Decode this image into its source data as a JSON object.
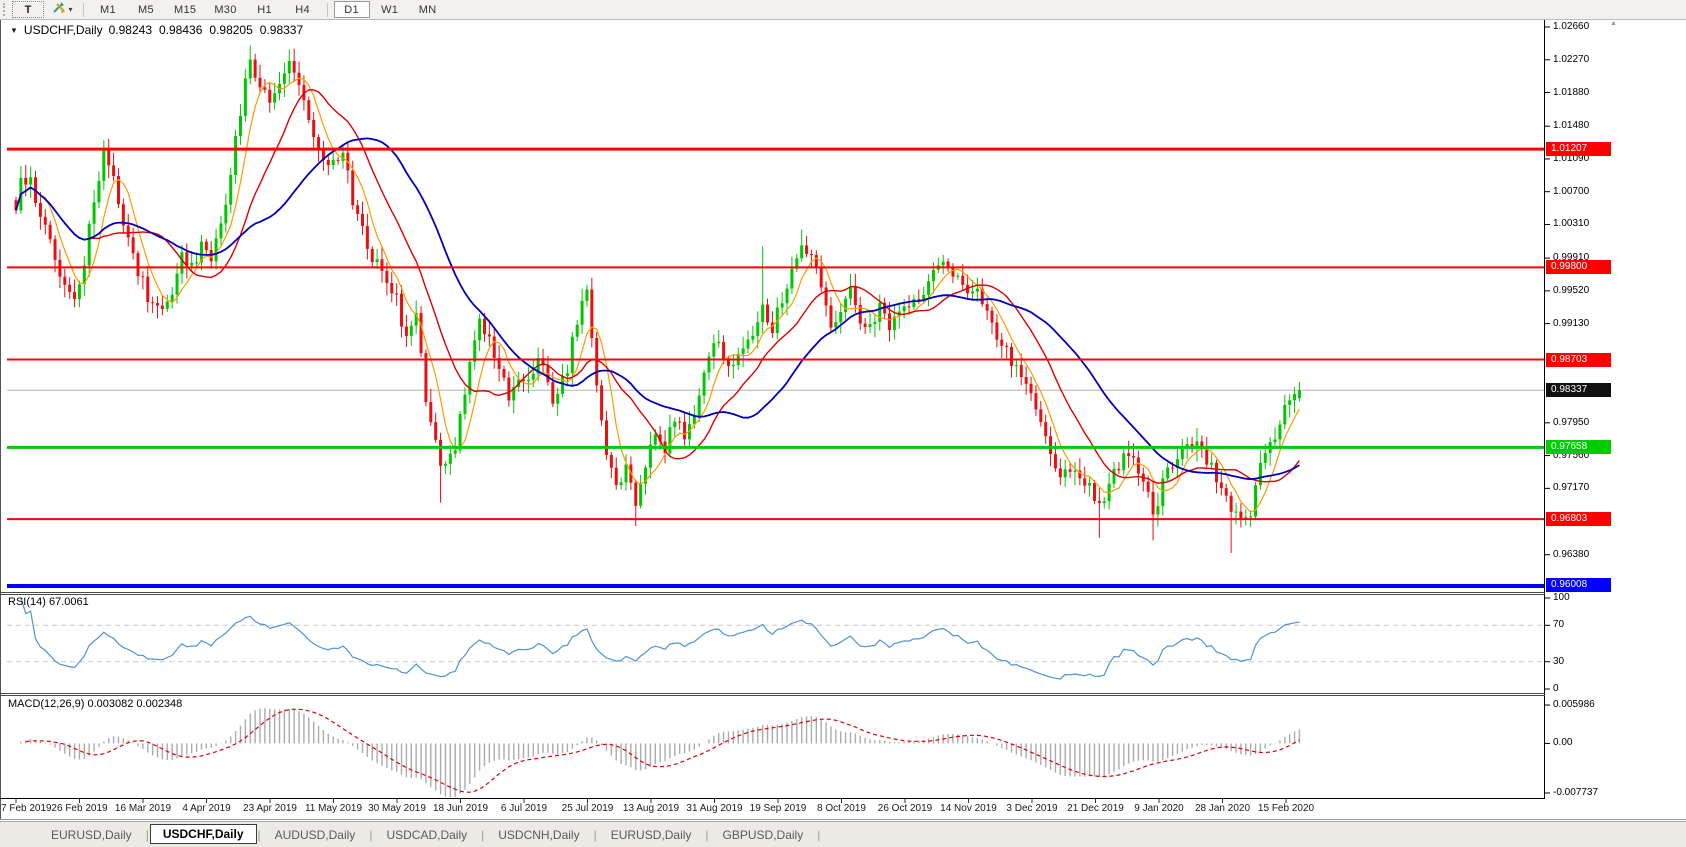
{
  "toolbar": {
    "text_tool_label": "T",
    "timeframes": [
      "M1",
      "M5",
      "M15",
      "M30",
      "H1",
      "H4",
      "D1",
      "W1",
      "MN"
    ],
    "active_timeframe": "D1"
  },
  "icons": {
    "dropdown_caret": "▾",
    "collapse_triangle": "▼",
    "tab_separator": "|",
    "axis_scroll_up": "▲"
  },
  "chart": {
    "symbol_label": "USDCHF,Daily",
    "open": "0.98243",
    "high": "0.98436",
    "low": "0.98205",
    "close": "0.98337"
  },
  "price_axis": {
    "ticks": [
      "1.02660",
      "1.02270",
      "1.01880",
      "1.01480",
      "1.01090",
      "1.00700",
      "1.00310",
      "0.99910",
      "0.99520",
      "0.99130",
      "0.97950",
      "0.97560",
      "0.97170",
      "0.96380"
    ]
  },
  "rsi": {
    "label": "RSI(14) 67.0061",
    "axis_ticks": [
      "100",
      "70",
      "30",
      "0"
    ]
  },
  "macd": {
    "label": "MACD(12,26,9) 0.003082 0.002348",
    "axis_ticks": [
      "0.005986",
      "0.00",
      "-0.007737"
    ]
  },
  "date_axis": {
    "labels": [
      "7 Feb 2019",
      "26 Feb 2019",
      "16 Mar 2019",
      "4 Apr 2019",
      "23 Apr 2019",
      "11 May 2019",
      "30 May 2019",
      "18 Jun 2019",
      "6 Jul 2019",
      "25 Jul 2019",
      "13 Aug 2019",
      "31 Aug 2019",
      "19 Sep 2019",
      "8 Oct 2019",
      "26 Oct 2019",
      "14 Nov 2019",
      "3 Dec 2019",
      "21 Dec 2019",
      "9 Jan 2020",
      "28 Jan 2020",
      "15 Feb 2020"
    ]
  },
  "tabs": {
    "items": [
      "EURUSD,Daily",
      "USDCHF,Daily",
      "AUDUSD,Daily",
      "USDCAD,Daily",
      "USDCNH,Daily",
      "EURUSD,Daily",
      "GBPUSD,Daily"
    ],
    "active_index": 1
  },
  "chart_data": {
    "type": "candlestick",
    "symbol": "USDCHF",
    "timeframe": "Daily",
    "bars": 264,
    "colors": {
      "bull": "#00C800",
      "bear": "#E81010",
      "ma_fast": "#FF9900",
      "ma_mid": "#DD0000",
      "ma_slow": "#0000BB",
      "rsi_line": "#4D94D6",
      "macd_bar": "#ABABAB",
      "macd_signal": "#E00000",
      "price_line_gray": "#B4B4B4"
    },
    "levels": [
      {
        "value": 1.01207,
        "label": "1.01207",
        "color": "#FF0000",
        "line_width": 3
      },
      {
        "value": 0.998,
        "label": "0.99800",
        "color": "#FF0000",
        "line_width": 2
      },
      {
        "value": 0.98703,
        "label": "0.98703",
        "color": "#FF0000",
        "line_width": 2
      },
      {
        "value": 0.98337,
        "label": "0.98337",
        "color": "#111111",
        "line_color": "#B4B4B4",
        "line_width": 1,
        "is_price_line": true
      },
      {
        "value": 0.97658,
        "label": "0.97658",
        "color": "#00CC00",
        "line_width": 3
      },
      {
        "value": 0.96803,
        "label": "0.96803",
        "color": "#FF0000",
        "line_width": 2
      },
      {
        "value": 0.96008,
        "label": "0.96008",
        "color": "#0000FF",
        "line_width": 4
      }
    ],
    "price_axis_ticks": [
      1.0266,
      1.0227,
      1.0188,
      1.0148,
      1.0109,
      1.007,
      1.0031,
      0.9991,
      0.9952,
      0.9913,
      0.9795,
      0.9756,
      0.9717,
      0.9638
    ],
    "close_path": [
      [
        0,
        1.004
      ],
      [
        1,
        1.0078
      ],
      [
        3,
        1.0092
      ],
      [
        5,
        1.0037
      ],
      [
        8,
        0.9995
      ],
      [
        10,
        0.9953
      ],
      [
        12,
        0.9941
      ],
      [
        14,
        0.9989
      ],
      [
        16,
        1.0061
      ],
      [
        18,
        1.0122
      ],
      [
        20,
        1.009
      ],
      [
        21,
        1.0061
      ],
      [
        23,
        1.0013
      ],
      [
        25,
        0.9977
      ],
      [
        27,
        0.9947
      ],
      [
        30,
        0.9929
      ],
      [
        32,
        0.9953
      ],
      [
        34,
        0.9995
      ],
      [
        36,
        0.9977
      ],
      [
        38,
        1.0007
      ],
      [
        40,
        0.9989
      ],
      [
        42,
        1.0025
      ],
      [
        43,
        1.005
      ],
      [
        45,
        1.013
      ],
      [
        47,
        1.02
      ],
      [
        48,
        1.0225
      ],
      [
        50,
        1.0195
      ],
      [
        52,
        1.017
      ],
      [
        54,
        1.02
      ],
      [
        56,
        1.0225
      ],
      [
        58,
        1.0195
      ],
      [
        60,
        1.015
      ],
      [
        62,
        1.012
      ],
      [
        65,
        1.0102
      ],
      [
        67,
        1.0114
      ],
      [
        70,
        1.0037
      ],
      [
        73,
        0.9995
      ],
      [
        76,
        0.9953
      ],
      [
        78,
        0.9941
      ],
      [
        80,
        0.9894
      ],
      [
        82,
        0.9917
      ],
      [
        84,
        0.9822
      ],
      [
        86,
        0.9775
      ],
      [
        87,
        0.9745
      ],
      [
        90,
        0.977
      ],
      [
        93,
        0.987
      ],
      [
        95,
        0.991
      ],
      [
        97,
        0.989
      ],
      [
        99,
        0.9855
      ],
      [
        101,
        0.983
      ],
      [
        104,
        0.9845
      ],
      [
        106,
        0.986
      ],
      [
        108,
        0.9868
      ],
      [
        110,
        0.982
      ],
      [
        112,
        0.9845
      ],
      [
        113,
        0.986
      ],
      [
        115,
        0.992
      ],
      [
        117,
        0.995
      ],
      [
        118,
        0.99
      ],
      [
        119,
        0.984
      ],
      [
        121,
        0.976
      ],
      [
        123,
        0.9718
      ],
      [
        125,
        0.974
      ],
      [
        127,
        0.97
      ],
      [
        129,
        0.9745
      ],
      [
        131,
        0.979
      ],
      [
        133,
        0.976
      ],
      [
        135,
        0.9805
      ],
      [
        137,
        0.9775
      ],
      [
        139,
        0.981
      ],
      [
        141,
        0.9855
      ],
      [
        143,
        0.9895
      ],
      [
        145,
        0.9875
      ],
      [
        147,
        0.9858
      ],
      [
        149,
        0.9888
      ],
      [
        151,
        0.9905
      ],
      [
        153,
        0.993
      ],
      [
        155,
        0.991
      ],
      [
        157,
        0.9945
      ],
      [
        159,
        0.9975
      ],
      [
        161,
        1.0005
      ],
      [
        163,
        0.999
      ],
      [
        165,
        0.9955
      ],
      [
        167,
        0.9906
      ],
      [
        169,
        0.993
      ],
      [
        171,
        0.995
      ],
      [
        173,
        0.9915
      ],
      [
        175,
        0.9905
      ],
      [
        177,
        0.993
      ],
      [
        179,
        0.991
      ],
      [
        181,
        0.993
      ],
      [
        183,
        0.994
      ],
      [
        185,
        0.995
      ],
      [
        187,
        0.9962
      ],
      [
        189,
        0.9976
      ],
      [
        191,
        0.9985
      ],
      [
        193,
        0.9968
      ],
      [
        195,
        0.9952
      ],
      [
        197,
        0.9958
      ],
      [
        199,
        0.9929
      ],
      [
        200,
        0.9906
      ],
      [
        204,
        0.987
      ],
      [
        208,
        0.9834
      ],
      [
        211,
        0.9775
      ],
      [
        214,
        0.9727
      ],
      [
        217,
        0.9745
      ],
      [
        220,
        0.9715
      ],
      [
        222,
        0.9691
      ],
      [
        225,
        0.9739
      ],
      [
        228,
        0.9763
      ],
      [
        231,
        0.9727
      ],
      [
        233,
        0.9685
      ],
      [
        236,
        0.9739
      ],
      [
        239,
        0.9763
      ],
      [
        242,
        0.9775
      ],
      [
        245,
        0.9739
      ],
      [
        248,
        0.9703
      ],
      [
        251,
        0.9679
      ],
      [
        253,
        0.969
      ],
      [
        255,
        0.9745
      ],
      [
        257,
        0.9768
      ],
      [
        259,
        0.98
      ],
      [
        261,
        0.982
      ],
      [
        263,
        0.98337
      ]
    ],
    "extremes": [
      {
        "bar": 18,
        "high": 1.0128
      },
      {
        "bar": 48,
        "high": 1.0244
      },
      {
        "bar": 56,
        "high": 1.0238
      },
      {
        "bar": 87,
        "low": 0.97
      },
      {
        "bar": 127,
        "low": 0.9672
      },
      {
        "bar": 153,
        "high": 1.0005
      },
      {
        "bar": 161,
        "high": 1.0025
      },
      {
        "bar": 222,
        "low": 0.9658
      },
      {
        "bar": 233,
        "low": 0.9655
      },
      {
        "bar": 249,
        "low": 0.964
      }
    ],
    "last_bar": {
      "open": 0.98243,
      "high": 0.98436,
      "low": 0.98205,
      "close": 0.98337
    },
    "moving_averages": [
      {
        "period": 6,
        "color": "#FF9900",
        "width": 1.2
      },
      {
        "period": 16,
        "color": "#DD0000",
        "width": 1.4
      },
      {
        "period": 32,
        "color": "#0000BB",
        "width": 1.8
      }
    ],
    "indicators": {
      "rsi": {
        "period": 14,
        "current": 67.0061,
        "axis": [
          0,
          30,
          70,
          100
        ]
      },
      "macd": {
        "fast": 12,
        "slow": 26,
        "signal": 9,
        "current_macd": 0.003082,
        "current_signal": 0.002348,
        "axis_max": 0.005986,
        "axis_min": -0.007737
      }
    }
  }
}
